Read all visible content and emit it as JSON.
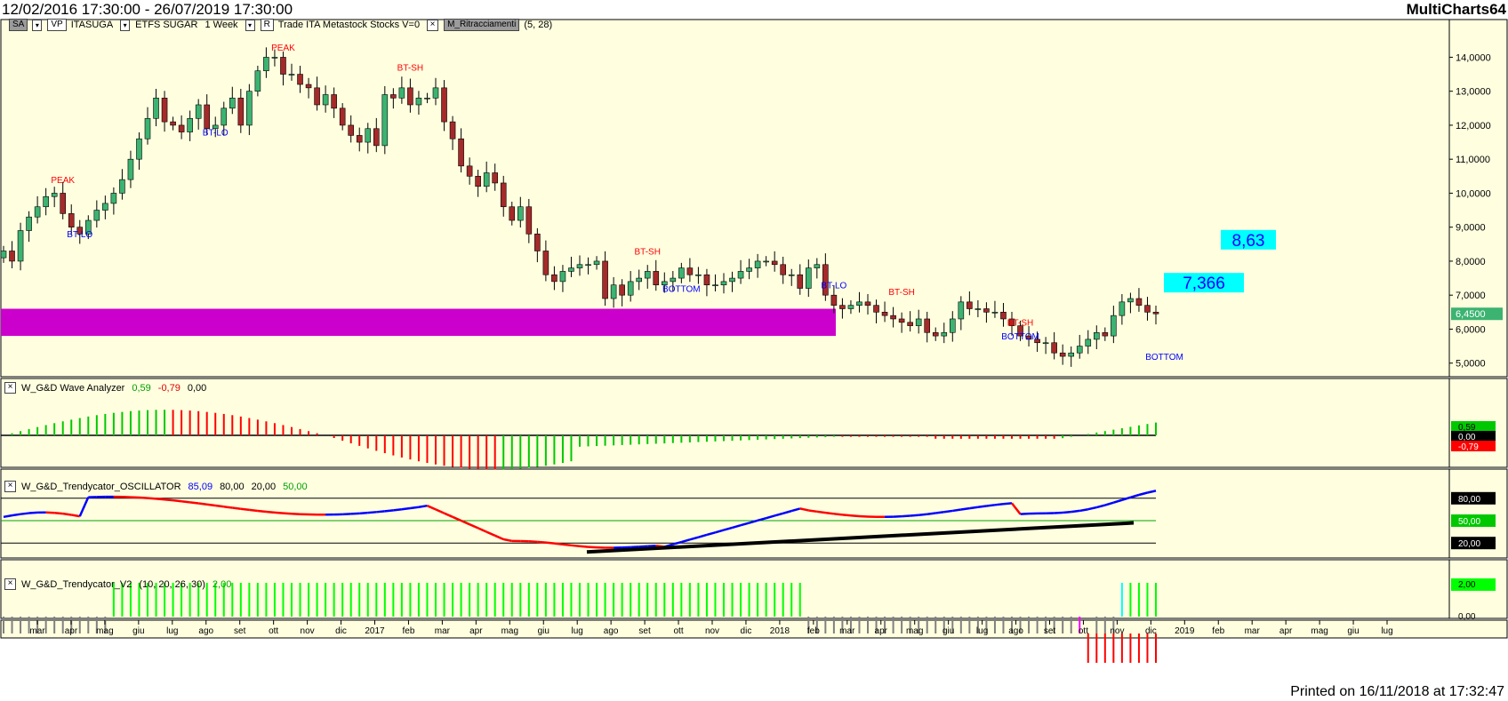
{
  "header": {
    "date_range": "12/02/2016 17:30:00 - 26/07/2019 17:30:00",
    "app_name": "MultiCharts64"
  },
  "footer": {
    "printed": "Printed on 16/11/2018 at 17:32:47"
  },
  "toolbar": {
    "sa_label": "SA",
    "vp_label": "VP",
    "symbol": "ITASUGA",
    "description": "ETFS SUGAR",
    "interval": "1 Week",
    "r_label": "R",
    "session_info": "Trade  ITA  Metastock  Stocks  V=0",
    "study_name": "M_Ritracciamenti",
    "study_params": "(5,  28)"
  },
  "panels": {
    "wave": {
      "name": "W_G&D Wave Analyzer",
      "v1": "0,59",
      "v2": "-0,79",
      "v3": "0,00"
    },
    "osc": {
      "name": "W_G&D_Trendycator_OSCILLATOR",
      "v1": "85,09",
      "v2": "80,00",
      "v3": "20,00",
      "v4": "50,00"
    },
    "v2": {
      "name": "W_G&D_Trendycator_V2",
      "params": "(10,  20,  26,  30)",
      "v1": "2,00"
    }
  },
  "chart_data": {
    "type": "candlestick",
    "price_axis_ticks": [
      "14,0000",
      "13,0000",
      "12,0000",
      "11,0000",
      "10,0000",
      "9,0000",
      "8,0000",
      "7,0000",
      "6,0000",
      "5,0000"
    ],
    "price_range": [
      4.6,
      14.9
    ],
    "last_price": "6,4500",
    "time_axis_labels": [
      "mar",
      "apr",
      "mag",
      "giu",
      "lug",
      "ago",
      "set",
      "ott",
      "nov",
      "dic",
      "2017",
      "feb",
      "mar",
      "apr",
      "mag",
      "giu",
      "lug",
      "ago",
      "set",
      "ott",
      "nov",
      "dic",
      "2018",
      "feb",
      "mar",
      "apr",
      "mag",
      "giu",
      "lug",
      "ago",
      "set",
      "ott",
      "nov",
      "dic",
      "2019",
      "feb",
      "mar",
      "apr",
      "mag",
      "giu",
      "lug"
    ],
    "closes": [
      8.3,
      8.0,
      8.9,
      9.3,
      9.6,
      9.9,
      10.0,
      9.4,
      9.0,
      8.8,
      9.2,
      9.5,
      9.7,
      10.0,
      10.4,
      11.0,
      11.6,
      12.2,
      12.8,
      12.1,
      12.0,
      11.8,
      12.2,
      12.6,
      11.9,
      12.0,
      12.5,
      12.8,
      12.0,
      13.0,
      13.6,
      14.0,
      14.0,
      13.5,
      13.5,
      13.2,
      13.1,
      12.6,
      12.9,
      12.5,
      12.0,
      11.7,
      11.5,
      11.9,
      11.4,
      12.9,
      12.8,
      13.1,
      12.6,
      12.8,
      12.8,
      13.1,
      12.1,
      11.6,
      10.8,
      10.5,
      10.2,
      10.6,
      10.3,
      9.6,
      9.2,
      9.6,
      8.8,
      8.3,
      7.6,
      7.4,
      7.7,
      7.8,
      7.9,
      7.9,
      8.0,
      6.9,
      7.3,
      7.0,
      7.4,
      7.5,
      7.7,
      7.3,
      7.4,
      7.5,
      7.8,
      7.6,
      7.6,
      7.3,
      7.3,
      7.4,
      7.5,
      7.7,
      7.8,
      8.0,
      8.0,
      7.9,
      7.6,
      7.6,
      7.2,
      7.8,
      7.9,
      7.0,
      6.7,
      6.6,
      6.7,
      6.8,
      6.7,
      6.5,
      6.4,
      6.3,
      6.2,
      6.1,
      6.3,
      5.9,
      5.8,
      5.9,
      6.3,
      6.8,
      6.6,
      6.6,
      6.5,
      6.5,
      6.3,
      6.1,
      5.8,
      5.7,
      5.6,
      5.6,
      5.3,
      5.2,
      5.3,
      5.5,
      5.7,
      5.9,
      5.8,
      6.4,
      6.8,
      6.9,
      6.7,
      6.5,
      6.45
    ],
    "price_bands": [
      {
        "label": "8,63",
        "value": 8.63
      },
      {
        "label": "7,366",
        "value": 7.366
      }
    ],
    "zone": {
      "from": 5.8,
      "to": 6.6,
      "color": "#cc00cc"
    },
    "annotations": [
      {
        "label": "PEAK",
        "bar": 7,
        "value": 10.3,
        "color": "#ff0000"
      },
      {
        "label": "BT-LO",
        "bar": 9,
        "value": 8.7,
        "color": "#0000ff"
      },
      {
        "label": "PEAK",
        "bar": 33,
        "value": 14.2,
        "color": "#ff0000"
      },
      {
        "label": "BT-LO",
        "bar": 25,
        "value": 11.7,
        "color": "#0000ff"
      },
      {
        "label": "BT-SH",
        "bar": 48,
        "value": 13.6,
        "color": "#ff0000"
      },
      {
        "label": "BT-SH",
        "bar": 76,
        "value": 8.2,
        "color": "#ff0000"
      },
      {
        "label": "BOTTOM",
        "bar": 80,
        "value": 7.1,
        "color": "#0000ff"
      },
      {
        "label": "BT-LO",
        "bar": 98,
        "value": 7.2,
        "color": "#0000ff"
      },
      {
        "label": "BT-SH",
        "bar": 106,
        "value": 7.0,
        "color": "#ff0000"
      },
      {
        "label": "BT-SH",
        "bar": 120,
        "value": 6.1,
        "color": "#ff0000"
      },
      {
        "label": "BOTTOM",
        "bar": 120,
        "value": 5.7,
        "color": "#0000ff"
      },
      {
        "label": "BOTTOM",
        "bar": 137,
        "value": 5.1,
        "color": "#0000ff"
      }
    ],
    "wave_labels": [
      "0,59",
      "0,00",
      "-0,79"
    ],
    "osc_levels": {
      "upper": "80,00",
      "mid": "50,00",
      "lower": "20,00",
      "value": "85,09"
    },
    "v2_label": "2,00",
    "v2_zero": "0,00",
    "colors": {
      "up": "#3cb371",
      "down": "#a52a2a",
      "bg": "#ffffe0",
      "axis_bg": "#ffffe0"
    }
  }
}
